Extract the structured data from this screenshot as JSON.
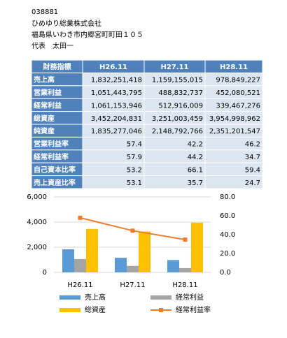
{
  "header": {
    "code": "038881",
    "company": "ひめゆり総業株式会社",
    "address": "福島県いわき市内郷宮町町田１０５",
    "representative": "代表　太田一"
  },
  "table": {
    "columns": [
      "財務指標",
      "H26.11",
      "H27.11",
      "H28.11"
    ],
    "rows": [
      [
        "売上高",
        "1,832,251,418",
        "1,159,155,015",
        "978,849,227"
      ],
      [
        "営業利益",
        "1,051,443,795",
        "488,832,737",
        "452,080,521"
      ],
      [
        "経常利益",
        "1,061,153,946",
        "512,916,009",
        "339,467,276"
      ],
      [
        "総資産",
        "3,452,204,831",
        "3,251,003,459",
        "3,954,998,962"
      ],
      [
        "純資産",
        "1,835,277,046",
        "2,148,792,766",
        "2,351,201,547"
      ],
      [
        "営業利益率",
        "57.4",
        "42.2",
        "46.2"
      ],
      [
        "経常利益率",
        "57.9",
        "44.2",
        "34.7"
      ],
      [
        "自己資本比率",
        "53.2",
        "66.1",
        "59.4"
      ],
      [
        "売上資産比率",
        "53.1",
        "35.7",
        "24.7"
      ]
    ]
  },
  "chart_data": {
    "type": "bar",
    "categories": [
      "H26.11",
      "H27.11",
      "H28.11"
    ],
    "series": [
      {
        "name": "売上高",
        "color": "#5b9bd5",
        "values": [
          1832,
          1159,
          979
        ]
      },
      {
        "name": "経常利益",
        "color": "#a5a5a5",
        "values": [
          1061,
          513,
          339
        ]
      },
      {
        "name": "総資産",
        "color": "#ffc000",
        "values": [
          3452,
          3251,
          3955
        ]
      },
      {
        "name": "経常利益率",
        "color": "#ed7d31",
        "values": [
          57.9,
          44.2,
          34.7
        ],
        "axis": "y2",
        "type": "line"
      }
    ],
    "ylim": [
      0,
      6000
    ],
    "yticks": [
      0,
      {
        "value": 2000,
        "label": "2,000"
      },
      {
        "value": 4000,
        "label": "4,000"
      },
      {
        "value": 6000,
        "label": "6,000"
      }
    ],
    "y2lim": [
      0,
      80
    ],
    "y2ticks": [
      {
        "value": 0,
        "label": "0.0"
      },
      {
        "value": 20,
        "label": "20.0"
      },
      {
        "value": 40,
        "label": "40.0"
      },
      {
        "value": 60,
        "label": "60.0"
      },
      {
        "value": 80,
        "label": "80.0"
      }
    ],
    "grid": true
  }
}
